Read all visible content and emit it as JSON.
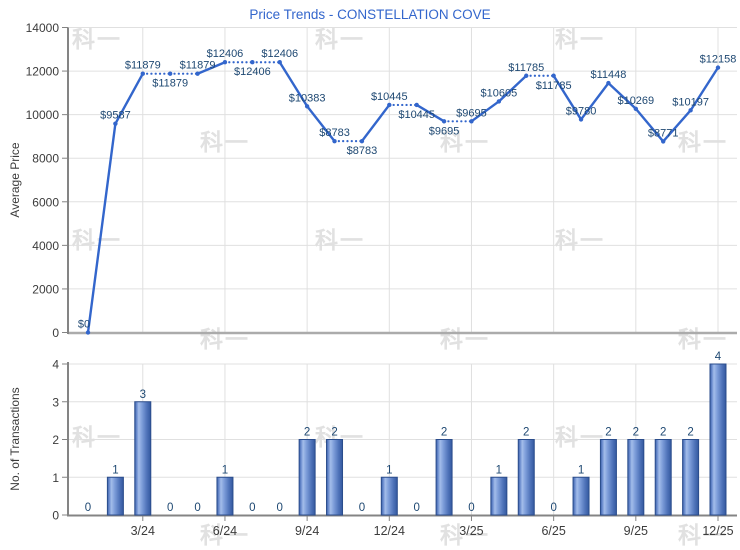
{
  "title": "Price Trends - CONSTELLATION COVE",
  "watermark_text": "科一",
  "colors": {
    "title": "#3366cc",
    "line": "#3366cc",
    "annotation": "#1e4872",
    "tick_text": "#3c3c3c",
    "axis": "#848484",
    "baseline_top_chart": "#ababab",
    "grid": "#e0e0e0",
    "bar_border": "#2b4d8c",
    "watermark": "#e1e1e1",
    "bar_gradient": [
      [
        "0%",
        "#3a60aa"
      ],
      [
        "12%",
        "#6b8cce"
      ],
      [
        "25%",
        "#a3bdea"
      ],
      [
        "45%",
        "#7e9eda"
      ],
      [
        "75%",
        "#5074ba"
      ],
      [
        "100%",
        "#33589f"
      ]
    ]
  },
  "chart_data": [
    {
      "type": "line",
      "title": "Price Trends - CONSTELLATION COVE",
      "ylabel": "Average Price",
      "ylim": [
        0,
        14000
      ],
      "yticks": [
        0,
        2000,
        4000,
        6000,
        8000,
        10000,
        12000,
        14000
      ],
      "categories": [
        "1/24",
        "2/24",
        "3/24",
        "4/24",
        "5/24",
        "6/24",
        "7/24",
        "8/24",
        "9/24",
        "10/24",
        "11/24",
        "12/24",
        "1/25",
        "2/25",
        "3/25",
        "4/25",
        "5/25",
        "6/25",
        "7/25",
        "8/25",
        "9/25",
        "10/25",
        "11/25",
        "12/25"
      ],
      "x_tick_labels": [
        "3/24",
        "6/24",
        "9/24",
        "12/24",
        "3/25",
        "6/25",
        "9/25",
        "12/25"
      ],
      "x_tick_indices": [
        2,
        5,
        8,
        11,
        14,
        17,
        20,
        23
      ],
      "values": [
        0,
        9587,
        11879,
        11879,
        11879,
        12406,
        12406,
        12406,
        10383,
        8783,
        8783,
        10445,
        10445,
        9695,
        9695,
        10605,
        11785,
        11785,
        9780,
        11448,
        10269,
        8771,
        10197,
        12158
      ],
      "point_labels": [
        "$0",
        "$9587",
        "$11879",
        "$11879",
        "$11879",
        "$12406",
        "$12406",
        "$12406",
        "$10383",
        "$8783",
        "$8783",
        "$10445",
        "$10445",
        "$9695",
        "$9695",
        "$10605",
        "$11785",
        "$11785",
        "$9780",
        "$11448",
        "$10269",
        "$8771",
        "$10197",
        "$12158"
      ],
      "label_positions": [
        "above",
        "above",
        "above",
        "below",
        "above",
        "above",
        "below",
        "above",
        "above",
        "above",
        "below",
        "above",
        "below",
        "below",
        "above",
        "above",
        "above",
        "below",
        "above",
        "above",
        "above",
        "above",
        "above",
        "above"
      ],
      "dotted_segments": [
        [
          2,
          3
        ],
        [
          3,
          4
        ],
        [
          5,
          6
        ],
        [
          6,
          7
        ],
        [
          9,
          10
        ],
        [
          11,
          12
        ],
        [
          13,
          14
        ],
        [
          16,
          17
        ]
      ],
      "grid": true,
      "legend": "none"
    },
    {
      "type": "bar",
      "ylabel": "No. of Transactions",
      "ylim": [
        0,
        4
      ],
      "yticks": [
        0,
        1,
        2,
        3,
        4
      ],
      "categories": [
        "1/24",
        "2/24",
        "3/24",
        "4/24",
        "5/24",
        "6/24",
        "7/24",
        "8/24",
        "9/24",
        "10/24",
        "11/24",
        "12/24",
        "1/25",
        "2/25",
        "3/25",
        "4/25",
        "5/25",
        "6/25",
        "7/25",
        "8/25",
        "9/25",
        "10/25",
        "11/25",
        "12/25"
      ],
      "x_tick_labels": [
        "3/24",
        "6/24",
        "9/24",
        "12/24",
        "3/25",
        "6/25",
        "9/25",
        "12/25"
      ],
      "x_tick_indices": [
        2,
        5,
        8,
        11,
        14,
        17,
        20,
        23
      ],
      "values": [
        0,
        1,
        3,
        0,
        0,
        1,
        0,
        0,
        2,
        2,
        0,
        1,
        0,
        2,
        0,
        1,
        2,
        0,
        1,
        2,
        2,
        2,
        2,
        4
      ],
      "bar_value_labels": [
        "0",
        "1",
        "3",
        "0",
        "0",
        "1",
        "0",
        "0",
        "2",
        "2",
        "0",
        "1",
        "0",
        "2",
        "0",
        "1",
        "2",
        "0",
        "1",
        "2",
        "2",
        "2",
        "2",
        "4"
      ],
      "grid": true,
      "legend": "none"
    }
  ]
}
